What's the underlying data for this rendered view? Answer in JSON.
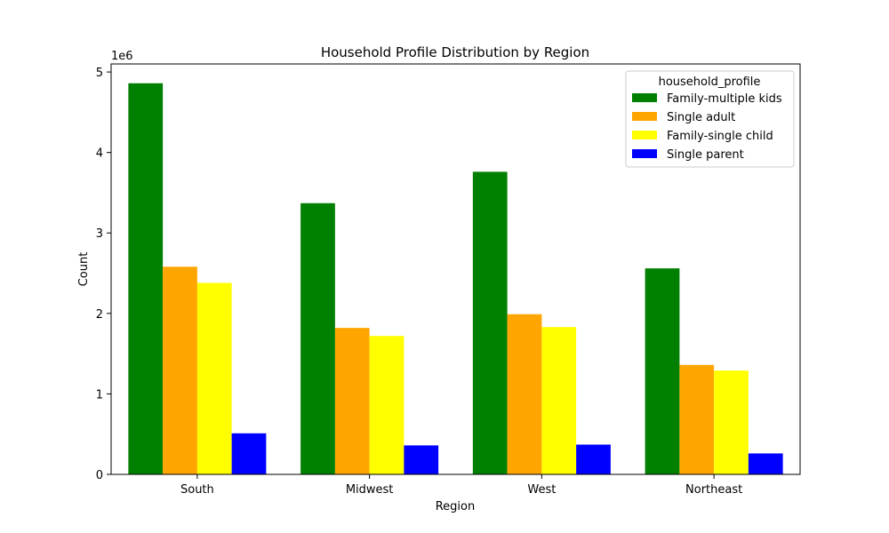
{
  "chart_data": {
    "type": "bar",
    "title": "Household Profile Distribution by Region",
    "xlabel": "Region",
    "ylabel": "Count",
    "offset_label": "1e6",
    "ylim": [
      0,
      5.1
    ],
    "yticks": [
      0,
      1,
      2,
      3,
      4,
      5
    ],
    "categories": [
      "South",
      "Midwest",
      "West",
      "Northeast"
    ],
    "legend": {
      "title": "household_profile",
      "placement": "top-right"
    },
    "grid": false,
    "series": [
      {
        "name": "Family-multiple kids",
        "color": "#008000",
        "values": [
          4.86,
          3.37,
          3.76,
          2.56
        ]
      },
      {
        "name": "Single adult",
        "color": "#ffa500",
        "values": [
          2.58,
          1.82,
          1.99,
          1.36
        ]
      },
      {
        "name": "Family-single child",
        "color": "#ffff00",
        "values": [
          2.38,
          1.72,
          1.83,
          1.29
        ]
      },
      {
        "name": "Single parent",
        "color": "#0000ff",
        "values": [
          0.51,
          0.36,
          0.37,
          0.26
        ]
      }
    ]
  }
}
